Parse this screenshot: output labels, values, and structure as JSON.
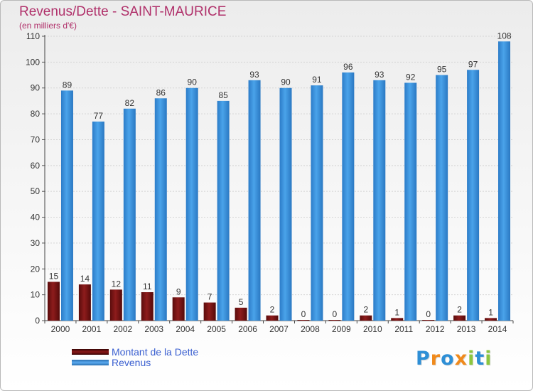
{
  "chart_data": {
    "type": "bar",
    "title": "Revenus/Dette - SAINT-MAURICE",
    "subtitle": "(en milliers d'€)",
    "categories": [
      "2000",
      "2001",
      "2002",
      "2003",
      "2004",
      "2005",
      "2006",
      "2007",
      "2008",
      "2009",
      "2010",
      "2011",
      "2012",
      "2013",
      "2014"
    ],
    "series": [
      {
        "name": "Montant de la Dette",
        "color": "#7a1414",
        "values": [
          15,
          14,
          12,
          11,
          9,
          7,
          5,
          2,
          0,
          0,
          2,
          1,
          0,
          2,
          1
        ]
      },
      {
        "name": "Revenus",
        "color": "#3c8fd9",
        "values": [
          89,
          77,
          82,
          86,
          90,
          85,
          93,
          90,
          91,
          96,
          93,
          92,
          95,
          97,
          108
        ]
      }
    ],
    "ylim": [
      0,
      110
    ],
    "yticks": [
      0,
      10,
      20,
      30,
      40,
      50,
      60,
      70,
      80,
      90,
      100,
      110
    ],
    "grid": true,
    "legend_position": "bottom-left"
  },
  "logo": {
    "letters": [
      "P",
      "r",
      "o",
      "x",
      "i",
      "t",
      "i"
    ],
    "colors": [
      "#2e8fd6",
      "#f08a1c",
      "#2e8fd6",
      "#f08a1c",
      "#8cc63f",
      "#2e8fd6",
      "#8cc63f"
    ]
  }
}
